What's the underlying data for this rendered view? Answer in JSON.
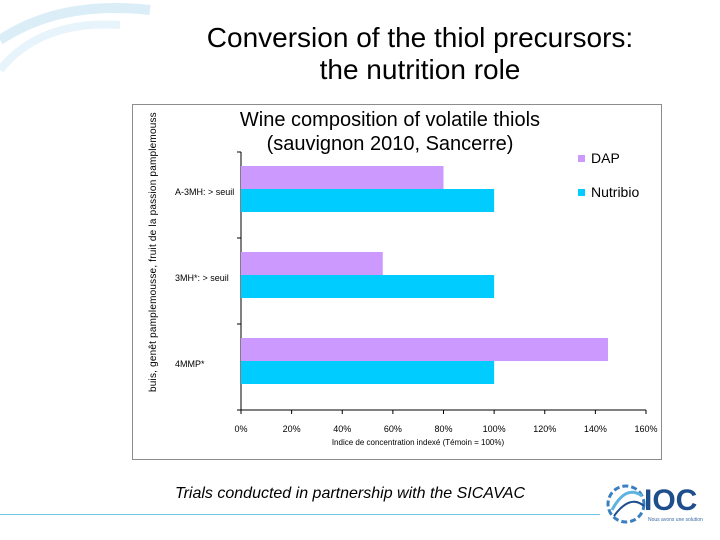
{
  "slide": {
    "title_line1": "Conversion of the thiol precursors:",
    "title_line2": "the nutrition role",
    "footnote": "Trials conducted  in partnership with the SICAVAC",
    "logo_text": "IOC",
    "logo_subtext": "Nous avons une solution",
    "logo_icon": "globe-swirl-icon",
    "accent_color": "#6ec5e8",
    "logo_color": "#1f4e8c"
  },
  "chart_data": {
    "type": "bar",
    "orientation": "horizontal",
    "title": "Wine composition of volatile thiols (sauvignon 2010, Sancerre)",
    "title_line1": "Wine composition of volatile thiols",
    "title_line2": "(sauvignon 2010, Sancerre)",
    "xlabel": "Indice de concentration indexé (Témoin = 100%)",
    "ylabel": "buis, genêt pamplemousse, fruit de la passion pamplemousse, fruit de la passion",
    "categories": [
      "A-3MH: > seuil",
      "3MH*: > seuil",
      "4MMP*"
    ],
    "series": [
      {
        "name": "DAP",
        "color": "#cc99ff",
        "values": [
          80,
          56,
          145
        ]
      },
      {
        "name": "Nutribio",
        "color": "#00ccff",
        "values": [
          100,
          100,
          100
        ]
      }
    ],
    "xlim": [
      0,
      160
    ],
    "xticks": [
      "0%",
      "20%",
      "40%",
      "60%",
      "80%",
      "100%",
      "120%",
      "140%",
      "160%"
    ],
    "grid": false,
    "legend_position": "right"
  }
}
